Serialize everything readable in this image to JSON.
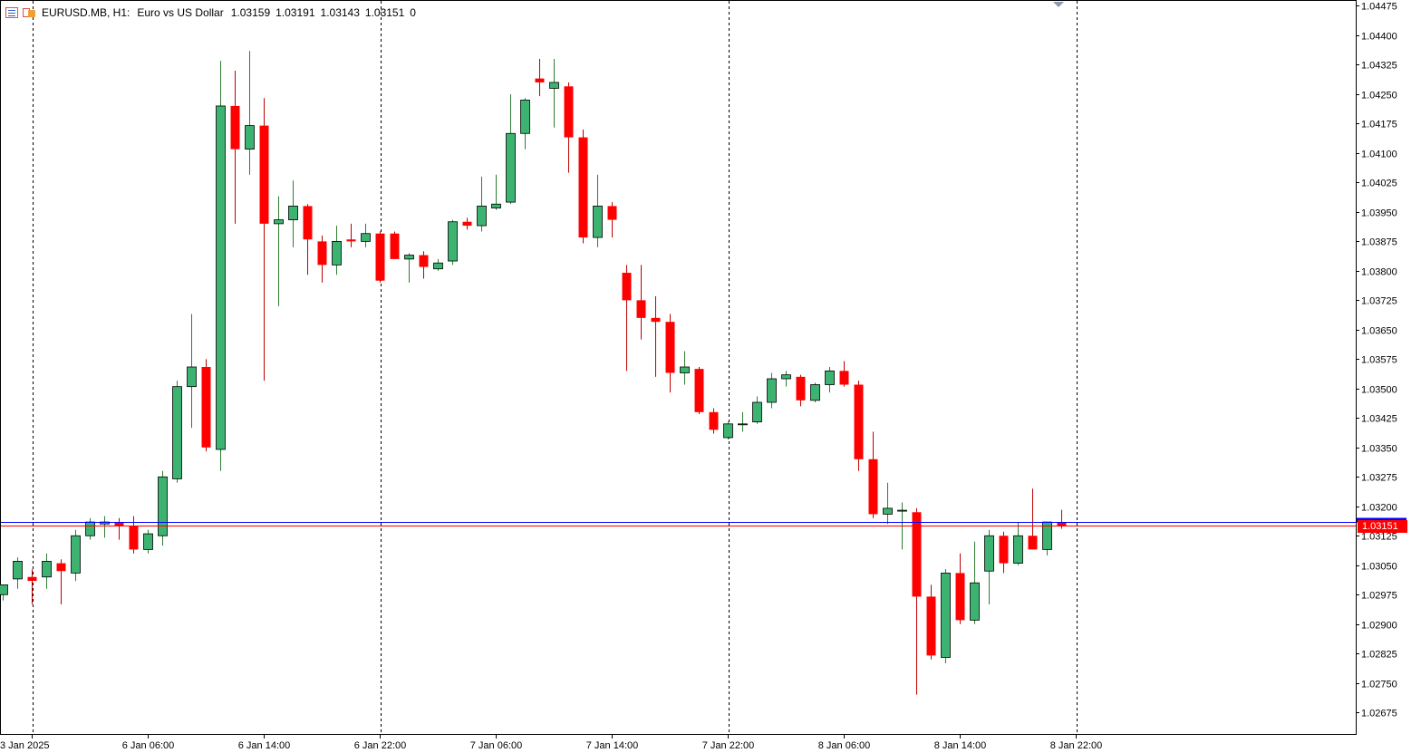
{
  "header": {
    "symbol": "EURUSD.MB, H1:",
    "description": "Euro vs US Dollar",
    "open": "1.03159",
    "high": "1.03191",
    "low": "1.03143",
    "close": "1.03151",
    "volume": "0"
  },
  "current_bid_label": "1.03151",
  "colors": {
    "bull": "#3cb371",
    "bear": "#ff0000",
    "bid_line": "#ff0000",
    "ask_line": "#0000ff",
    "grid": "#000000",
    "axis_text": "#000000"
  },
  "chart_data": {
    "type": "candlestick",
    "symbol": "EURUSD.MB",
    "timeframe": "H1",
    "ylim": [
      1.0262,
      1.0449
    ],
    "y_ticks": [
      "1.04475",
      "1.04400",
      "1.04325",
      "1.04250",
      "1.04175",
      "1.04100",
      "1.04025",
      "1.03950",
      "1.03875",
      "1.03800",
      "1.03725",
      "1.03650",
      "1.03575",
      "1.03500",
      "1.03425",
      "1.03350",
      "1.03275",
      "1.03200",
      "1.03125",
      "1.03050",
      "1.02975",
      "1.02900",
      "1.02825",
      "1.02750",
      "1.02675"
    ],
    "x_ticks": [
      {
        "label": "3 Jan 2025",
        "index": 2
      },
      {
        "label": "6 Jan 06:00",
        "index": 10
      },
      {
        "label": "6 Jan 14:00",
        "index": 18
      },
      {
        "label": "6 Jan 22:00",
        "index": 26
      },
      {
        "label": "7 Jan 06:00",
        "index": 34
      },
      {
        "label": "7 Jan 14:00",
        "index": 42
      },
      {
        "label": "7 Jan 22:00",
        "index": 50
      },
      {
        "label": "8 Jan 06:00",
        "index": 58
      },
      {
        "label": "8 Jan 14:00",
        "index": 66
      },
      {
        "label": "8 Jan 22:00",
        "index": 74
      }
    ],
    "period_separators": [
      2,
      26,
      50,
      74
    ],
    "bid": 1.03151,
    "ask": 1.0316,
    "candles": [
      [
        1.02975,
        1.03,
        1.0296,
        1.03
      ],
      [
        1.03015,
        1.0307,
        1.0299,
        1.0306
      ],
      [
        1.0302,
        1.0304,
        1.0295,
        1.0301
      ],
      [
        1.0302,
        1.0308,
        1.0299,
        1.0306
      ],
      [
        1.03055,
        1.03065,
        1.0295,
        1.03035
      ],
      [
        1.0303,
        1.0314,
        1.0301,
        1.03125
      ],
      [
        1.03125,
        1.0317,
        1.03115,
        1.0316
      ],
      [
        1.03155,
        1.03175,
        1.0312,
        1.0316
      ],
      [
        1.0316,
        1.0317,
        1.03115,
        1.0315
      ],
      [
        1.0315,
        1.03175,
        1.0308,
        1.0309
      ],
      [
        1.0309,
        1.0314,
        1.0308,
        1.0313
      ],
      [
        1.03125,
        1.0329,
        1.031,
        1.03275
      ],
      [
        1.0327,
        1.0352,
        1.0326,
        1.03505
      ],
      [
        1.03505,
        1.0369,
        1.034,
        1.03555
      ],
      [
        1.03555,
        1.03575,
        1.0334,
        1.0335
      ],
      [
        1.03345,
        1.04335,
        1.0329,
        1.0422
      ],
      [
        1.0422,
        1.0431,
        1.0392,
        1.0411
      ],
      [
        1.0411,
        1.0436,
        1.04045,
        1.0417
      ],
      [
        1.0417,
        1.0424,
        1.0352,
        1.0392
      ],
      [
        1.0392,
        1.0399,
        1.0371,
        1.0393
      ],
      [
        1.0393,
        1.0403,
        1.0386,
        1.03965
      ],
      [
        1.03965,
        1.0397,
        1.0379,
        1.0388
      ],
      [
        1.03875,
        1.0389,
        1.0377,
        1.03815
      ],
      [
        1.03815,
        1.03915,
        1.0379,
        1.03875
      ],
      [
        1.0388,
        1.0392,
        1.0386,
        1.03875
      ],
      [
        1.03875,
        1.0392,
        1.0386,
        1.03895
      ],
      [
        1.03895,
        1.039,
        1.0377,
        1.03775
      ],
      [
        1.03895,
        1.039,
        1.0383,
        1.0383
      ],
      [
        1.0383,
        1.03845,
        1.0377,
        1.0384
      ],
      [
        1.0384,
        1.0385,
        1.0378,
        1.0381
      ],
      [
        1.03805,
        1.0383,
        1.038,
        1.0382
      ],
      [
        1.03825,
        1.0393,
        1.03815,
        1.03925
      ],
      [
        1.03925,
        1.03935,
        1.03905,
        1.03915
      ],
      [
        1.03915,
        1.0404,
        1.039,
        1.03965
      ],
      [
        1.0396,
        1.04045,
        1.03955,
        1.0397
      ],
      [
        1.03975,
        1.0425,
        1.0397,
        1.0415
      ],
      [
        1.0415,
        1.0424,
        1.0411,
        1.04235
      ],
      [
        1.0429,
        1.0434,
        1.04245,
        1.0428
      ],
      [
        1.04265,
        1.0434,
        1.04165,
        1.0428
      ],
      [
        1.0427,
        1.0428,
        1.0405,
        1.0414
      ],
      [
        1.0414,
        1.0416,
        1.0387,
        1.03885
      ],
      [
        1.03885,
        1.04045,
        1.0386,
        1.03965
      ],
      [
        1.03965,
        1.03975,
        1.03885,
        1.0393
      ],
      [
        1.03795,
        1.03815,
        1.03545,
        1.03725
      ],
      [
        1.03725,
        1.03815,
        1.03625,
        1.0368
      ],
      [
        1.0368,
        1.03735,
        1.0353,
        1.0367
      ],
      [
        1.0367,
        1.0369,
        1.0349,
        1.0354
      ],
      [
        1.0354,
        1.03595,
        1.0351,
        1.03555
      ],
      [
        1.0355,
        1.03555,
        1.03435,
        1.0344
      ],
      [
        1.0344,
        1.0345,
        1.03385,
        1.03395
      ],
      [
        1.03375,
        1.03415,
        1.0337,
        1.0341
      ],
      [
        1.0341,
        1.0344,
        1.0339,
        1.0341
      ],
      [
        1.03415,
        1.0348,
        1.0341,
        1.03465
      ],
      [
        1.03465,
        1.0354,
        1.0345,
        1.03525
      ],
      [
        1.03525,
        1.03545,
        1.03505,
        1.03535
      ],
      [
        1.0353,
        1.03535,
        1.03455,
        1.0347
      ],
      [
        1.0347,
        1.03515,
        1.03465,
        1.0351
      ],
      [
        1.0351,
        1.03555,
        1.0349,
        1.03545
      ],
      [
        1.03545,
        1.0357,
        1.03505,
        1.0351
      ],
      [
        1.0351,
        1.0352,
        1.0329,
        1.0332
      ],
      [
        1.0332,
        1.0339,
        1.0317,
        1.0318
      ],
      [
        1.0318,
        1.0326,
        1.03155,
        1.03195
      ],
      [
        1.0319,
        1.0321,
        1.0309,
        1.0319
      ],
      [
        1.03185,
        1.03195,
        1.0272,
        1.0297
      ],
      [
        1.0297,
        1.03,
        1.0281,
        1.0282
      ],
      [
        1.02815,
        1.0304,
        1.028,
        1.0303
      ],
      [
        1.0303,
        1.0308,
        1.029,
        1.0291
      ],
      [
        1.0291,
        1.0311,
        1.029,
        1.03005
      ],
      [
        1.03035,
        1.0314,
        1.0295,
        1.03125
      ],
      [
        1.03125,
        1.03135,
        1.0303,
        1.03055
      ],
      [
        1.03055,
        1.0316,
        1.0305,
        1.03125
      ],
      [
        1.03125,
        1.03245,
        1.0309,
        1.0309
      ],
      [
        1.0309,
        1.0316,
        1.03075,
        1.0316
      ],
      [
        1.03159,
        1.03191,
        1.03143,
        1.03151
      ]
    ]
  }
}
